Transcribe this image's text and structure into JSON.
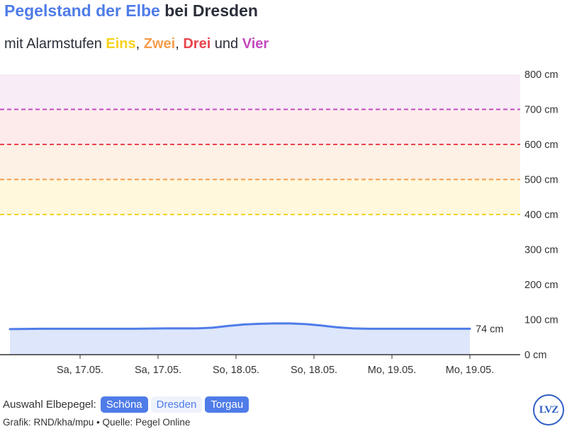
{
  "header": {
    "title_highlight": "Pegelstand der Elbe",
    "title_rest": " bei Dresden",
    "subtitle_prefix": "mit Alarmstufen ",
    "level1": "Eins",
    "sep1": ", ",
    "level2": "Zwei",
    "sep2": ", ",
    "level3": "Drei",
    "sep3": " und ",
    "level4": "Vier"
  },
  "colors": {
    "accent": "#4f7ce8",
    "level1": "#f6d21a",
    "level2": "#f59d4c",
    "level3": "#e8454e",
    "level4": "#c24bc0"
  },
  "selector": {
    "label": "Auswahl Elbepegel:",
    "options": [
      {
        "label": "Schöna",
        "active": true
      },
      {
        "label": "Dresden",
        "active": false
      },
      {
        "label": "Torgau",
        "active": true
      }
    ]
  },
  "credits": "Grafik: RND/kha/mpu • Quelle: Pegel Online",
  "logo_text": "LVZ",
  "chart_data": {
    "type": "area",
    "ylim": [
      0,
      800
    ],
    "y_ticks": [
      {
        "value": 0,
        "label": "0 cm"
      },
      {
        "value": 100,
        "label": "100 cm"
      },
      {
        "value": 200,
        "label": "200 cm"
      },
      {
        "value": 300,
        "label": "300 cm"
      },
      {
        "value": 400,
        "label": "400 cm"
      },
      {
        "value": 500,
        "label": "500 cm"
      },
      {
        "value": 600,
        "label": "600 cm"
      },
      {
        "value": 700,
        "label": "700 cm"
      },
      {
        "value": 800,
        "label": "800 cm"
      }
    ],
    "xlim": [
      0,
      60
    ],
    "x_ticks": [
      {
        "x": 9,
        "label": "Sa, 17.05."
      },
      {
        "x": 19,
        "label": "Sa, 17.05."
      },
      {
        "x": 29,
        "label": "So, 18.05."
      },
      {
        "x": 39,
        "label": "So, 18.05."
      },
      {
        "x": 49,
        "label": "Mo, 19.05."
      },
      {
        "x": 59,
        "label": "Mo, 19.05."
      }
    ],
    "series": [
      {
        "x": [
          0,
          4,
          8,
          12,
          16,
          20,
          24,
          26,
          28,
          30,
          32,
          34,
          36,
          38,
          40,
          42,
          44,
          46,
          48,
          52,
          56,
          59
        ],
        "values": [
          73,
          74,
          74,
          74,
          74,
          75,
          75,
          77,
          82,
          86,
          88,
          89,
          89,
          87,
          83,
          78,
          75,
          74,
          74,
          74,
          74,
          74
        ]
      }
    ],
    "last_value_label": "74 cm",
    "alarm_levels": [
      {
        "name": "Eins",
        "value": 400,
        "color": "#f6d21a"
      },
      {
        "name": "Zwei",
        "value": 500,
        "color": "#f59d4c"
      },
      {
        "name": "Drei",
        "value": 600,
        "color": "#e8454e"
      },
      {
        "name": "Vier",
        "value": 700,
        "color": "#c24bc0"
      }
    ],
    "bands": [
      {
        "from": 400,
        "to": 500,
        "color": "#fff8dc"
      },
      {
        "from": 500,
        "to": 600,
        "color": "#fdf0e4"
      },
      {
        "from": 600,
        "to": 700,
        "color": "#fdebec"
      },
      {
        "from": 700,
        "to": 800,
        "color": "#f8ecf7"
      }
    ],
    "grid": false
  }
}
